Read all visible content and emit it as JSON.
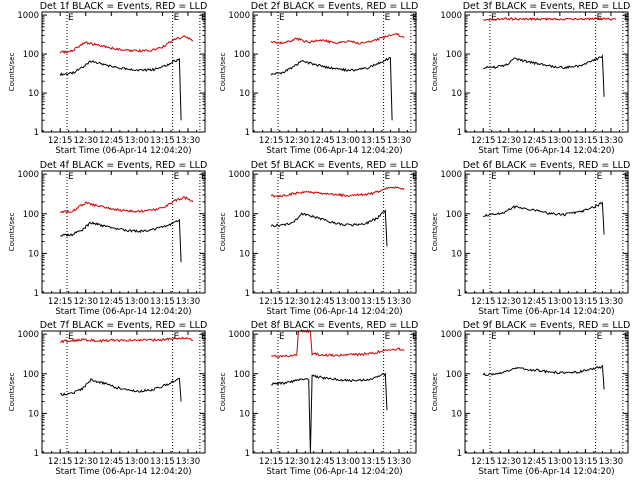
{
  "figure": {
    "x_label": "Start Time (06-Apr-14 12:04:20)",
    "y_label": "Counts/sec",
    "marker_text": "E"
  },
  "chart_data": [
    {
      "type": "line",
      "title": "Det 1f BLACK = Events, RED = LLD",
      "xlabel": "Start Time (06-Apr-14 12:04:20)",
      "ylabel": "Counts/sec",
      "x_ticks": [
        "12:15",
        "12:30",
        "12:45",
        "13:00",
        "13:15",
        "13:30"
      ],
      "y_ticks": [
        "1",
        "10",
        "100",
        "1000"
      ],
      "y_scale": "log",
      "ylim": [
        1,
        1200
      ],
      "markers": [
        "12:19",
        "13:21",
        "13:37"
      ],
      "series": [
        {
          "name": "Events",
          "color": "#000000",
          "x": [
            "12:15",
            "12:22",
            "12:28",
            "12:33",
            "12:40",
            "12:48",
            "12:55",
            "13:02",
            "13:10",
            "13:17",
            "13:22",
            "13:25",
            "13:26"
          ],
          "y": [
            30,
            32,
            45,
            65,
            55,
            45,
            40,
            38,
            40,
            50,
            65,
            75,
            2
          ]
        },
        {
          "name": "LLD",
          "color": "#cc0000",
          "x": [
            "12:15",
            "12:22",
            "12:30",
            "12:37",
            "12:45",
            "12:52",
            "13:00",
            "13:08",
            "13:15",
            "13:22",
            "13:28",
            "13:33"
          ],
          "y": [
            110,
            120,
            200,
            170,
            140,
            130,
            120,
            125,
            150,
            240,
            280,
            220
          ]
        }
      ]
    },
    {
      "type": "line",
      "title": "Det 2f BLACK = Events, RED = LLD",
      "xlabel": "Start Time (06-Apr-14 12:04:20)",
      "ylabel": "Counts/sec",
      "x_ticks": [
        "12:15",
        "12:30",
        "12:45",
        "13:00",
        "13:15",
        "13:30"
      ],
      "y_ticks": [
        "1",
        "10",
        "100",
        "1000"
      ],
      "y_scale": "log",
      "ylim": [
        1,
        1200
      ],
      "markers": [
        "12:19",
        "13:21",
        "13:37"
      ],
      "series": [
        {
          "name": "Events",
          "color": "#000000",
          "x": [
            "12:15",
            "12:22",
            "12:28",
            "12:33",
            "12:40",
            "12:48",
            "12:55",
            "13:02",
            "13:10",
            "13:17",
            "13:22",
            "13:25",
            "13:26"
          ],
          "y": [
            30,
            34,
            47,
            65,
            55,
            45,
            40,
            38,
            42,
            55,
            70,
            80,
            2
          ]
        },
        {
          "name": "LLD",
          "color": "#cc0000",
          "x": [
            "12:15",
            "12:22",
            "12:30",
            "12:37",
            "12:45",
            "12:52",
            "13:00",
            "13:08",
            "13:15",
            "13:22",
            "13:28",
            "13:33"
          ],
          "y": [
            200,
            190,
            250,
            200,
            230,
            190,
            210,
            190,
            220,
            280,
            340,
            260
          ]
        }
      ]
    },
    {
      "type": "line",
      "title": "Det 3f BLACK = Events, RED = LLD",
      "xlabel": "Start Time (06-Apr-14 12:04:20)",
      "ylabel": "Counts/sec",
      "x_ticks": [
        "12:15",
        "12:30",
        "12:45",
        "13:00",
        "13:15",
        "13:30"
      ],
      "y_ticks": [
        "1",
        "10",
        "100",
        "1000"
      ],
      "y_scale": "log",
      "ylim": [
        1,
        1200
      ],
      "markers": [
        "12:19",
        "13:21",
        "13:37"
      ],
      "series": [
        {
          "name": "Events",
          "color": "#000000",
          "x": [
            "12:15",
            "12:22",
            "12:28",
            "12:33",
            "12:40",
            "12:48",
            "12:55",
            "13:02",
            "13:10",
            "13:17",
            "13:22",
            "13:25",
            "13:26"
          ],
          "y": [
            45,
            46,
            50,
            75,
            65,
            55,
            48,
            45,
            48,
            60,
            75,
            90,
            8
          ]
        },
        {
          "name": "LLD",
          "color": "#cc0000",
          "x": [
            "12:15",
            "12:22",
            "12:30",
            "12:37",
            "12:45",
            "12:52",
            "13:00",
            "13:08",
            "13:15",
            "13:22",
            "13:28",
            "13:33"
          ],
          "y": [
            780,
            790,
            800,
            790,
            800,
            780,
            800,
            790,
            800,
            810,
            800,
            780
          ]
        }
      ]
    },
    {
      "type": "line",
      "title": "Det 4f BLACK = Events, RED = LLD",
      "xlabel": "Start Time (06-Apr-14 12:04:20)",
      "ylabel": "Counts/sec",
      "x_ticks": [
        "12:15",
        "12:30",
        "12:45",
        "13:00",
        "13:15",
        "13:30"
      ],
      "y_ticks": [
        "1",
        "10",
        "100",
        "1000"
      ],
      "y_scale": "log",
      "ylim": [
        1,
        1200
      ],
      "markers": [
        "12:19",
        "13:21",
        "13:37"
      ],
      "series": [
        {
          "name": "Events",
          "color": "#000000",
          "x": [
            "12:15",
            "12:22",
            "12:28",
            "12:33",
            "12:40",
            "12:48",
            "12:55",
            "13:02",
            "13:10",
            "13:17",
            "13:22",
            "13:25",
            "13:26"
          ],
          "y": [
            28,
            30,
            40,
            60,
            50,
            42,
            38,
            36,
            40,
            48,
            60,
            70,
            6
          ]
        },
        {
          "name": "LLD",
          "color": "#cc0000",
          "x": [
            "12:15",
            "12:22",
            "12:30",
            "12:37",
            "12:45",
            "12:52",
            "13:00",
            "13:08",
            "13:15",
            "13:22",
            "13:28",
            "13:33"
          ],
          "y": [
            110,
            115,
            190,
            160,
            130,
            120,
            115,
            120,
            140,
            210,
            260,
            200
          ]
        }
      ]
    },
    {
      "type": "line",
      "title": "Det 5f BLACK = Events, RED = LLD",
      "xlabel": "Start Time (06-Apr-14 12:04:20)",
      "ylabel": "Counts/sec",
      "x_ticks": [
        "12:15",
        "12:30",
        "12:45",
        "13:00",
        "13:15",
        "13:30"
      ],
      "y_ticks": [
        "1",
        "10",
        "100",
        "1000"
      ],
      "y_scale": "log",
      "ylim": [
        1,
        1200
      ],
      "markers": [
        "12:19",
        "13:21",
        "13:37"
      ],
      "series": [
        {
          "name": "Events",
          "color": "#000000",
          "x": [
            "12:15",
            "12:22",
            "12:28",
            "12:33",
            "12:40",
            "12:48",
            "12:55",
            "13:02",
            "13:10",
            "13:17",
            "13:20",
            "13:22",
            "13:23"
          ],
          "y": [
            50,
            52,
            60,
            100,
            85,
            65,
            55,
            52,
            55,
            75,
            100,
            120,
            15
          ]
        },
        {
          "name": "LLD",
          "color": "#cc0000",
          "x": [
            "12:15",
            "12:22",
            "12:30",
            "12:37",
            "12:45",
            "12:52",
            "13:00",
            "13:08",
            "13:15",
            "13:22",
            "13:28",
            "13:33"
          ],
          "y": [
            280,
            290,
            330,
            360,
            320,
            300,
            290,
            300,
            330,
            420,
            460,
            400
          ]
        }
      ]
    },
    {
      "type": "line",
      "title": "Det 6f BLACK = Events, RED = LLD",
      "xlabel": "Start Time (06-Apr-14 12:04:20)",
      "ylabel": "Counts/sec",
      "x_ticks": [
        "12:15",
        "12:30",
        "12:45",
        "13:00",
        "13:15",
        "13:30"
      ],
      "y_ticks": [
        "1",
        "10",
        "100",
        "1000"
      ],
      "y_scale": "log",
      "ylim": [
        1,
        1200
      ],
      "markers": [
        "12:19",
        "13:21",
        "13:37"
      ],
      "series": [
        {
          "name": "Events",
          "color": "#000000",
          "x": [
            "12:15",
            "12:22",
            "12:28",
            "12:33",
            "12:40",
            "12:48",
            "12:55",
            "13:02",
            "13:10",
            "13:17",
            "13:22",
            "13:25",
            "13:26"
          ],
          "y": [
            90,
            95,
            110,
            150,
            130,
            115,
            100,
            95,
            105,
            130,
            160,
            190,
            30
          ]
        }
      ]
    },
    {
      "type": "line",
      "title": "Det 7f BLACK = Events, RED = LLD",
      "xlabel": "Start Time (06-Apr-14 12:04:20)",
      "ylabel": "Counts/sec",
      "x_ticks": [
        "12:15",
        "12:30",
        "12:45",
        "13:00",
        "13:15",
        "13:30"
      ],
      "y_ticks": [
        "1",
        "10",
        "100",
        "1000"
      ],
      "y_scale": "log",
      "ylim": [
        1,
        1200
      ],
      "markers": [
        "12:19",
        "13:21",
        "13:37"
      ],
      "series": [
        {
          "name": "Events",
          "color": "#000000",
          "x": [
            "12:15",
            "12:22",
            "12:28",
            "12:33",
            "12:40",
            "12:48",
            "12:55",
            "13:02",
            "13:10",
            "13:17",
            "13:22",
            "13:25",
            "13:26"
          ],
          "y": [
            30,
            32,
            42,
            70,
            58,
            45,
            38,
            36,
            40,
            52,
            65,
            80,
            20
          ]
        },
        {
          "name": "LLD",
          "color": "#cc0000",
          "x": [
            "12:15",
            "12:22",
            "12:30",
            "12:37",
            "12:45",
            "12:52",
            "13:00",
            "13:08",
            "13:15",
            "13:22",
            "13:28",
            "13:33"
          ],
          "y": [
            650,
            700,
            720,
            680,
            700,
            690,
            710,
            700,
            720,
            780,
            800,
            700
          ]
        }
      ]
    },
    {
      "type": "line",
      "title": "Det 8f BLACK = Events, RED = LLD",
      "xlabel": "Start Time (06-Apr-14 12:04:20)",
      "ylabel": "Counts/sec",
      "x_ticks": [
        "12:15",
        "12:30",
        "12:45",
        "13:00",
        "13:15",
        "13:30"
      ],
      "y_ticks": [
        "1",
        "10",
        "100",
        "1000"
      ],
      "y_scale": "log",
      "ylim": [
        1,
        1200
      ],
      "markers": [
        "12:19",
        "13:21",
        "13:37"
      ],
      "series": [
        {
          "name": "Events",
          "color": "#000000",
          "x": [
            "12:15",
            "12:22",
            "12:28",
            "12:33",
            "12:37",
            "12:38",
            "12:39",
            "12:45",
            "12:55",
            "13:05",
            "13:15",
            "13:22",
            "13:23"
          ],
          "y": [
            55,
            58,
            65,
            75,
            70,
            1,
            90,
            80,
            70,
            65,
            75,
            100,
            12
          ]
        },
        {
          "name": "LLD",
          "color": "#cc0000",
          "x": [
            "12:15",
            "12:22",
            "12:30",
            "12:31",
            "12:38",
            "12:39",
            "12:45",
            "12:52",
            "13:00",
            "13:08",
            "13:15",
            "13:22",
            "13:30",
            "13:33"
          ],
          "y": [
            280,
            270,
            300,
            1200,
            1200,
            320,
            300,
            290,
            300,
            310,
            330,
            400,
            420,
            380
          ]
        }
      ]
    },
    {
      "type": "line",
      "title": "Det 9f BLACK = Events, RED = LLD",
      "xlabel": "Start Time (06-Apr-14 12:04:20)",
      "ylabel": "Counts/sec",
      "x_ticks": [
        "12:15",
        "12:30",
        "12:45",
        "13:00",
        "13:15",
        "13:30"
      ],
      "y_ticks": [
        "1",
        "10",
        "100",
        "1000"
      ],
      "y_scale": "log",
      "ylim": [
        1,
        1200
      ],
      "markers": [
        "12:19",
        "13:21",
        "13:37"
      ],
      "series": [
        {
          "name": "Events",
          "color": "#000000",
          "x": [
            "12:15",
            "12:22",
            "12:28",
            "12:33",
            "12:40",
            "12:48",
            "12:55",
            "13:02",
            "13:10",
            "13:17",
            "13:22",
            "13:25",
            "13:26"
          ],
          "y": [
            95,
            100,
            110,
            140,
            130,
            120,
            110,
            105,
            110,
            125,
            140,
            150,
            40
          ]
        }
      ]
    }
  ]
}
